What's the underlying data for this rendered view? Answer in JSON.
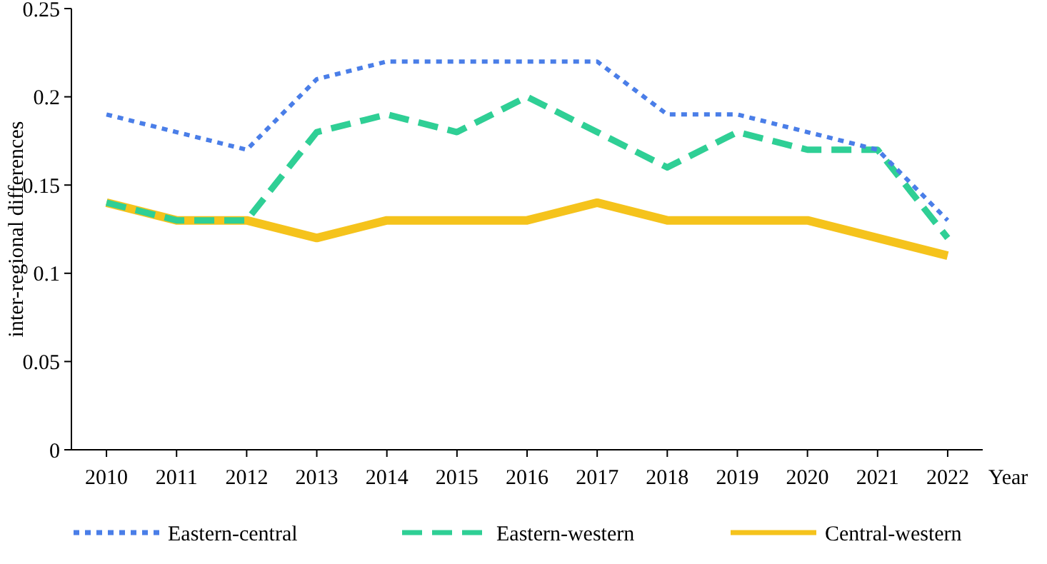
{
  "chart_data": {
    "type": "line",
    "xlabel": "Year",
    "ylabel": "inter-regional differences",
    "categories": [
      "2010",
      "2011",
      "2012",
      "2013",
      "2014",
      "2015",
      "2016",
      "2017",
      "2018",
      "2019",
      "2020",
      "2021",
      "2022"
    ],
    "series": [
      {
        "name": "Eastern-central",
        "color": "#4a7ee8",
        "line_style": "dotted",
        "values": [
          0.19,
          0.18,
          0.17,
          0.21,
          0.22,
          0.22,
          0.22,
          0.22,
          0.19,
          0.19,
          0.18,
          0.17,
          0.13
        ]
      },
      {
        "name": "Eastern-western",
        "color": "#2fcf95",
        "line_style": "dashed",
        "values": [
          0.14,
          0.13,
          0.13,
          0.18,
          0.19,
          0.18,
          0.2,
          0.18,
          0.16,
          0.18,
          0.17,
          0.17,
          0.12
        ]
      },
      {
        "name": "Central-western",
        "color": "#f5c31c",
        "line_style": "solid",
        "values": [
          0.14,
          0.13,
          0.13,
          0.12,
          0.13,
          0.13,
          0.13,
          0.14,
          0.13,
          0.13,
          0.13,
          0.12,
          0.11
        ]
      }
    ],
    "ylim": [
      0,
      0.25
    ],
    "yticks": [
      0,
      0.05,
      0.1,
      0.15,
      0.2,
      0.25
    ],
    "grid": false,
    "legend": "bottom",
    "marker": "none"
  }
}
